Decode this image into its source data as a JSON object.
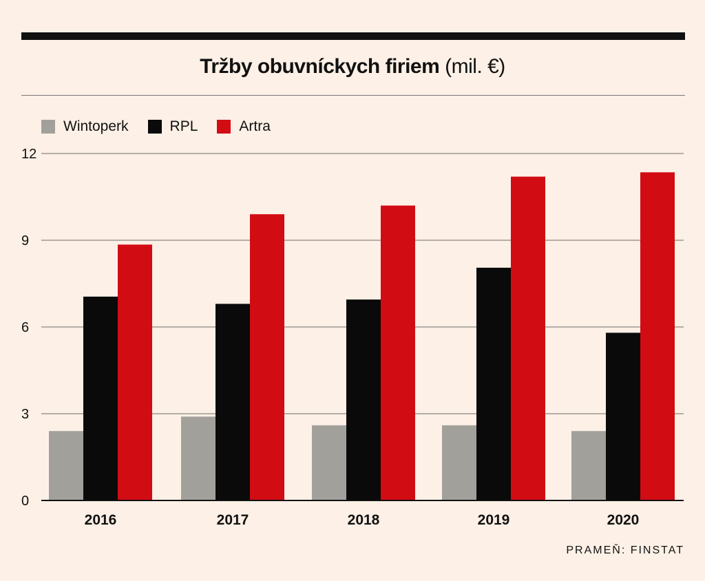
{
  "title": {
    "bold": "Tržby obuvníckych firiem",
    "unit": "(mil. €)"
  },
  "source": "PRAMEŇ: FINSTAT",
  "colors": {
    "Wintoperk": "#a2a09b",
    "RPL": "#0a0a0a",
    "Artra": "#d20c13"
  },
  "chart_data": {
    "type": "bar",
    "title": "Tržby obuvníckych firiem (mil. €)",
    "xlabel": "",
    "ylabel": "",
    "ylim": [
      0,
      12
    ],
    "yticks": [
      0,
      3,
      6,
      9,
      12
    ],
    "grid": true,
    "legend": "top-left",
    "categories": [
      "2016",
      "2017",
      "2018",
      "2019",
      "2020"
    ],
    "series": [
      {
        "name": "Wintoperk",
        "values": [
          2.4,
          2.9,
          2.6,
          2.6,
          2.4
        ]
      },
      {
        "name": "RPL",
        "values": [
          7.05,
          6.8,
          6.95,
          8.05,
          5.8
        ]
      },
      {
        "name": "Artra",
        "values": [
          8.85,
          9.9,
          10.2,
          11.2,
          11.35
        ]
      }
    ]
  }
}
